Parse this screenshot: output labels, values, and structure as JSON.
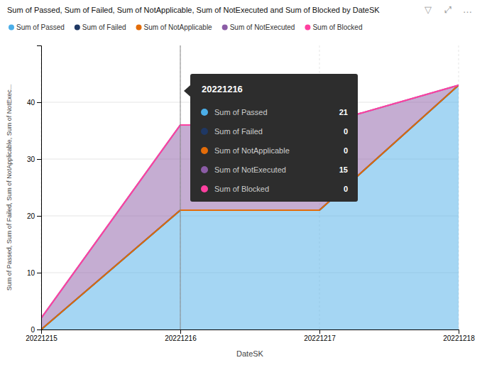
{
  "chart_data": {
    "type": "area",
    "stacked": true,
    "title": "Sum of Passed, Sum of Failed, Sum of NotApplicable, Sum of NotExecuted and Sum of Blocked by DateSK",
    "x_label": "DateSK",
    "y_label": "Sum of Passed, Sum of Failed, Sum of NotApplicable, Sum of NotExec...",
    "x": [
      20221215,
      20221216,
      20221217,
      20221218
    ],
    "xlim": [
      20221215,
      20221218
    ],
    "xticks": [
      20221215,
      20221216,
      20221217,
      20221218
    ],
    "ylim": [
      0,
      50
    ],
    "yticks": [
      0,
      10,
      20,
      30,
      40
    ],
    "grid": true,
    "legend": "top",
    "series": [
      {
        "name": "Sum of Passed",
        "color": "#4BAEE8",
        "values": [
          0,
          21,
          21,
          43
        ]
      },
      {
        "name": "Sum of Failed",
        "color": "#1F3864",
        "values": [
          0,
          0,
          0,
          0
        ]
      },
      {
        "name": "Sum of NotApplicable",
        "color": "#E36C09",
        "values": [
          0,
          0,
          0,
          0
        ]
      },
      {
        "name": "Sum of NotExecuted",
        "color": "#8B5CA6",
        "values": [
          2,
          15,
          15,
          0
        ]
      },
      {
        "name": "Sum of Blocked",
        "color": "#FF40A0",
        "values": [
          0,
          0,
          0,
          0
        ]
      }
    ],
    "vlines": [
      20221216
    ],
    "icons": [
      "▽",
      "⤢",
      "…"
    ],
    "tooltip": {
      "title": "20221216",
      "color": "#2D2D2D",
      "rows": [
        {
          "label": "Sum of Passed",
          "value": 21
        },
        {
          "label": "Sum of Failed",
          "value": 0
        },
        {
          "label": "Sum of NotApplicable",
          "value": 0
        },
        {
          "label": "Sum of NotExecuted",
          "value": 15
        },
        {
          "label": "Sum of Blocked",
          "value": 0
        }
      ]
    }
  }
}
